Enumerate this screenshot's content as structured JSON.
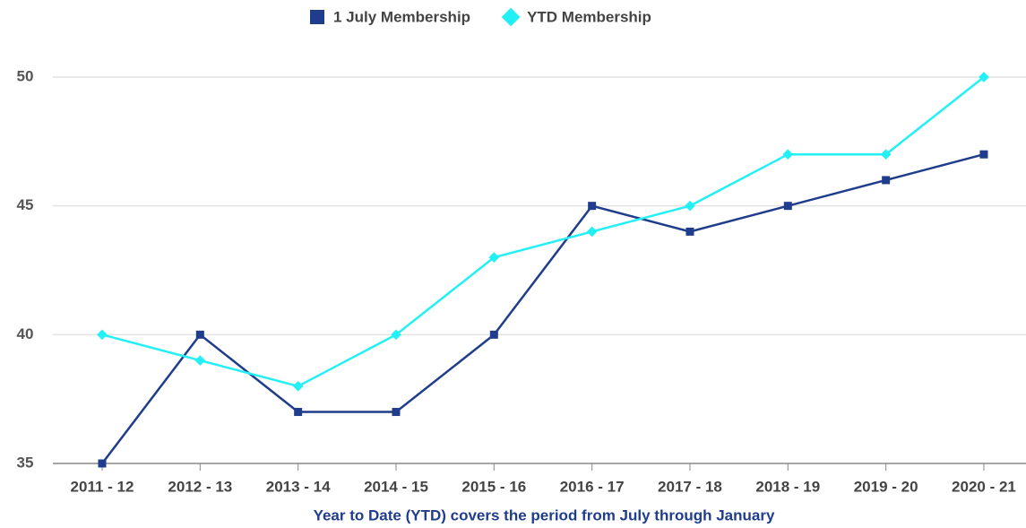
{
  "chart_data": {
    "type": "line",
    "x_label": "Year to Date (YTD) covers the period from July through January",
    "categories": [
      "2011 - 12",
      "2012 - 13",
      "2013 - 14",
      "2014 - 15",
      "2015 - 16",
      "2016 - 17",
      "2017 - 18",
      "2018 - 19",
      "2019 - 20",
      "2020 - 21"
    ],
    "series": [
      {
        "name": "1 July Membership",
        "color": "#1f3d8c",
        "marker": "square",
        "values": [
          35,
          40,
          37,
          37,
          40,
          45,
          44,
          45,
          46,
          47
        ]
      },
      {
        "name": "YTD Membership",
        "color": "#22f0f5",
        "marker": "diamond",
        "values": [
          40,
          39,
          38,
          40,
          43,
          44,
          45,
          47,
          47,
          50
        ]
      }
    ],
    "ylim": [
      35,
      50
    ],
    "yticks": [
      35,
      40,
      45,
      50
    ],
    "grid": true,
    "legend": "top"
  }
}
